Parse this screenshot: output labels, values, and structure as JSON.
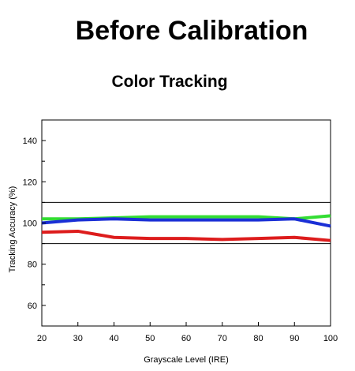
{
  "header": {
    "title": "Before Calibration",
    "subtitle": "Color Tracking"
  },
  "chart_data": {
    "type": "line",
    "title": "Color Tracking",
    "xlabel": "Grayscale Level (IRE)",
    "ylabel": "Tracking Accuracy (%)",
    "xlim": [
      20,
      100
    ],
    "ylim": [
      50,
      150
    ],
    "x_ticks": [
      20,
      30,
      40,
      50,
      60,
      70,
      80,
      90,
      100
    ],
    "y_ticks": [
      60,
      80,
      100,
      120,
      140
    ],
    "y_minor_ticks": [
      70,
      90,
      110,
      130
    ],
    "reference_lines": [
      110,
      90
    ],
    "grid": false,
    "x": [
      20,
      30,
      40,
      50,
      60,
      70,
      80,
      90,
      100
    ],
    "series": [
      {
        "color": "#33dd33",
        "values": [
          102,
          102,
          102.5,
          103,
          103,
          103,
          103,
          102,
          103.5
        ]
      },
      {
        "color": "#1a2fd6",
        "values": [
          100,
          101.5,
          102,
          101.5,
          101.5,
          101.5,
          101.5,
          102,
          98.5
        ]
      },
      {
        "color": "#dd1c1c",
        "values": [
          95.5,
          96,
          93,
          92.5,
          92.5,
          92,
          92.5,
          93,
          91.5
        ]
      }
    ]
  }
}
